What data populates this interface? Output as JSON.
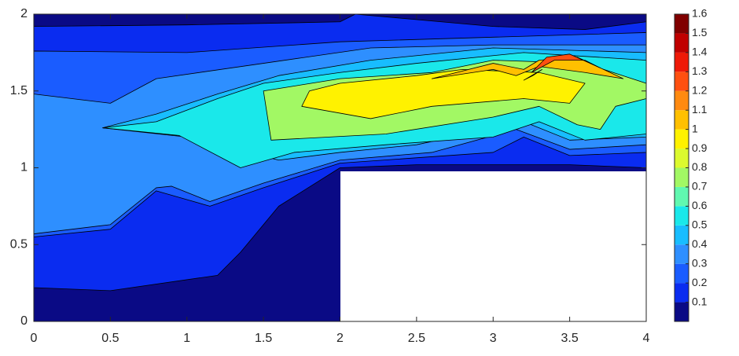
{
  "chart_data": {
    "type": "contour",
    "xlim": [
      0,
      4
    ],
    "ylim": [
      0,
      2
    ],
    "xticks": [
      0,
      0.5,
      1,
      1.5,
      2,
      2.5,
      3,
      3.5,
      4
    ],
    "yticks": [
      0,
      0.5,
      1,
      1.5,
      2
    ],
    "colorbar": {
      "clim": [
        0,
        1.6
      ],
      "ticks": [
        0.1,
        0.2,
        0.3,
        0.4,
        0.5,
        0.6,
        0.7,
        0.8,
        0.9,
        1,
        1.1,
        1.2,
        1.3,
        1.4,
        1.5,
        1.6
      ],
      "colors": [
        "#0a0a85",
        "#0a2cf0",
        "#1a5cff",
        "#2e8fff",
        "#18bdff",
        "#1ae8ea",
        "#60f8b0",
        "#a2f864",
        "#dcfa2e",
        "#fff200",
        "#ffc000",
        "#ff8a10",
        "#ff5010",
        "#ee1a08",
        "#c00000",
        "#800000"
      ]
    }
  }
}
